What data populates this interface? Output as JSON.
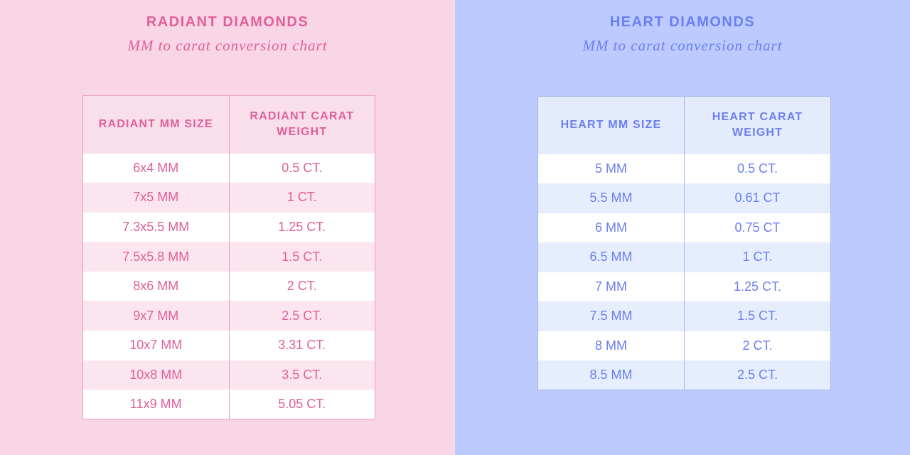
{
  "radiant": {
    "title": "RADIANT DIAMONDS",
    "subtitle": "MM to carat conversion chart",
    "headers": [
      "RADIANT MM SIZE",
      "RADIANT CARAT WEIGHT"
    ],
    "rows": [
      [
        "6x4 MM",
        "0.5 CT."
      ],
      [
        "7x5 MM",
        "1 CT."
      ],
      [
        "7.3x5.5 MM",
        "1.25 CT."
      ],
      [
        "7.5x5.8 MM",
        "1.5 CT."
      ],
      [
        "8x6 MM",
        "2 CT."
      ],
      [
        "9x7 MM",
        "2.5 CT."
      ],
      [
        "10x7 MM",
        "3.31 CT."
      ],
      [
        "10x8 MM",
        "3.5 CT."
      ],
      [
        "11x9 MM",
        "5.05 CT."
      ]
    ]
  },
  "heart": {
    "title": "HEART DIAMONDS",
    "subtitle": "MM to carat conversion chart",
    "headers": [
      "HEART MM SIZE",
      "HEART CARAT WEIGHT"
    ],
    "rows": [
      [
        "5 MM",
        "0.5 CT."
      ],
      [
        "5.5 MM",
        "0.61 CT"
      ],
      [
        "6 MM",
        "0.75 CT"
      ],
      [
        "6.5 MM",
        "1 CT."
      ],
      [
        "7 MM",
        "1.25 CT."
      ],
      [
        "7.5 MM",
        "1.5 CT."
      ],
      [
        "8 MM",
        "2 CT."
      ],
      [
        "8.5 MM",
        "2.5 CT."
      ]
    ]
  },
  "colors": {
    "radiant_accent": "#e0609a",
    "radiant_background": "#f8d6e6",
    "heart_accent": "#6b7ff0",
    "heart_background": "#bccafd"
  }
}
